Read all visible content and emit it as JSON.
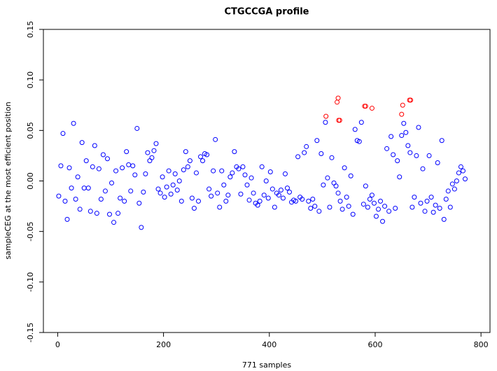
{
  "chart_data": {
    "type": "scatter",
    "title": "CTGCCGA profile",
    "x_label": "771 samples",
    "y_label": "sampleCEG at the most efficient position",
    "xlim": [
      -27,
      817
    ],
    "ylim": [
      -0.15,
      0.15
    ],
    "xticks": [
      0,
      200,
      400,
      600,
      800
    ],
    "yticks": [
      -0.15,
      {
        "value": -0.1,
        "label": "-0.10"
      },
      -0.05,
      {
        "value": 0,
        "label": "0.00"
      },
      0.05,
      {
        "value": 0.1,
        "label": "0.10"
      },
      0.15
    ],
    "grid": false,
    "series": [
      {
        "color": "#0000ff",
        "x": [
          2,
          6,
          10,
          14,
          18,
          22,
          26,
          30,
          34,
          38,
          42,
          46,
          50,
          54,
          58,
          62,
          66,
          70,
          74,
          78,
          82,
          86,
          90,
          94,
          98,
          102,
          106,
          110,
          114,
          118,
          122,
          126,
          130,
          134,
          138,
          142,
          146,
          150,
          154,
          158,
          162,
          166,
          170,
          174,
          178,
          182,
          186,
          190,
          194,
          198,
          202,
          206,
          210,
          214,
          218,
          222,
          226,
          230,
          234,
          238,
          242,
          246,
          250,
          254,
          258,
          262,
          266,
          270,
          274,
          278,
          282,
          286,
          290,
          294,
          298,
          302,
          306,
          310,
          314,
          318,
          322,
          326,
          330,
          334,
          338,
          342,
          346,
          350,
          354,
          358,
          362,
          366,
          370,
          374,
          378,
          382,
          386,
          390,
          394,
          398,
          402,
          406,
          410,
          414,
          418,
          422,
          426,
          430,
          434,
          438,
          442,
          446,
          450,
          454,
          458,
          462,
          466,
          470,
          474,
          478,
          482,
          486,
          490,
          494,
          498,
          502,
          506,
          510,
          514,
          518,
          522,
          526,
          530,
          534,
          538,
          542,
          546,
          550,
          554,
          558,
          562,
          566,
          570,
          574,
          578,
          582,
          586,
          590,
          594,
          598,
          602,
          606,
          610,
          614,
          618,
          622,
          626,
          630,
          634,
          638,
          642,
          646,
          650,
          654,
          658,
          662,
          666,
          670,
          674,
          678,
          682,
          686,
          690,
          694,
          698,
          702,
          706,
          710,
          714,
          718,
          722,
          726,
          730,
          734,
          738,
          742,
          746,
          750,
          754,
          758,
          762,
          766,
          770
        ],
        "values": [
          -0.015,
          0.015,
          0.047,
          -0.02,
          -0.038,
          0.013,
          -0.007,
          0.057,
          -0.018,
          0.004,
          -0.028,
          0.038,
          -0.007,
          0.02,
          -0.007,
          -0.03,
          0.014,
          0.035,
          -0.032,
          0.012,
          -0.018,
          0.026,
          -0.01,
          0.022,
          -0.033,
          -0.002,
          -0.041,
          0.01,
          -0.032,
          -0.017,
          0.013,
          -0.02,
          0.029,
          0.016,
          -0.01,
          0.015,
          0.006,
          0.052,
          -0.022,
          -0.046,
          -0.011,
          0.007,
          0.028,
          0.02,
          0.023,
          0.03,
          0.037,
          -0.008,
          -0.012,
          0.004,
          -0.016,
          -0.006,
          0.01,
          -0.013,
          -0.004,
          0.007,
          -0.009,
          0.0,
          -0.02,
          0.011,
          0.029,
          0.014,
          0.02,
          -0.017,
          -0.027,
          0.008,
          -0.02,
          0.024,
          0.02,
          0.027,
          0.026,
          -0.008,
          -0.015,
          0.01,
          0.041,
          -0.012,
          -0.026,
          0.01,
          -0.004,
          -0.02,
          -0.014,
          0.004,
          0.008,
          0.029,
          0.014,
          0.012,
          -0.013,
          0.014,
          0.006,
          -0.004,
          -0.019,
          0.003,
          -0.012,
          -0.022,
          -0.024,
          -0.02,
          0.014,
          -0.014,
          0.0,
          -0.017,
          0.009,
          -0.008,
          -0.026,
          -0.012,
          -0.014,
          -0.009,
          -0.017,
          0.007,
          -0.007,
          -0.011,
          -0.021,
          -0.019,
          -0.02,
          0.024,
          -0.016,
          -0.018,
          0.028,
          0.034,
          -0.02,
          -0.027,
          -0.018,
          -0.025,
          0.04,
          -0.03,
          0.027,
          -0.004,
          0.058,
          0.003,
          -0.026,
          0.023,
          -0.002,
          -0.005,
          -0.012,
          -0.02,
          -0.028,
          0.013,
          -0.016,
          -0.025,
          0.005,
          -0.033,
          0.051,
          0.04,
          0.039,
          0.058,
          -0.023,
          -0.005,
          -0.026,
          -0.018,
          -0.014,
          -0.022,
          -0.035,
          -0.028,
          -0.02,
          -0.04,
          -0.025,
          0.032,
          -0.03,
          0.044,
          0.026,
          -0.027,
          0.02,
          0.004,
          0.045,
          0.057,
          0.048,
          0.035,
          0.028,
          -0.026,
          -0.016,
          0.025,
          0.053,
          -0.022,
          0.012,
          -0.03,
          -0.02,
          0.025,
          -0.016,
          -0.031,
          -0.024,
          0.018,
          -0.027,
          0.04,
          -0.038,
          -0.018,
          -0.01,
          -0.026,
          -0.003,
          -0.008,
          0.0,
          0.008,
          0.014,
          0.01,
          0.002
        ]
      },
      {
        "color": "#ff0000",
        "x": [
          507,
          528,
          530,
          531,
          533,
          580,
          582,
          594,
          650,
          652,
          665,
          667
        ],
        "values": [
          0.064,
          0.078,
          0.082,
          0.06,
          0.06,
          0.074,
          0.074,
          0.072,
          0.066,
          0.075,
          0.08,
          0.08
        ]
      }
    ]
  }
}
